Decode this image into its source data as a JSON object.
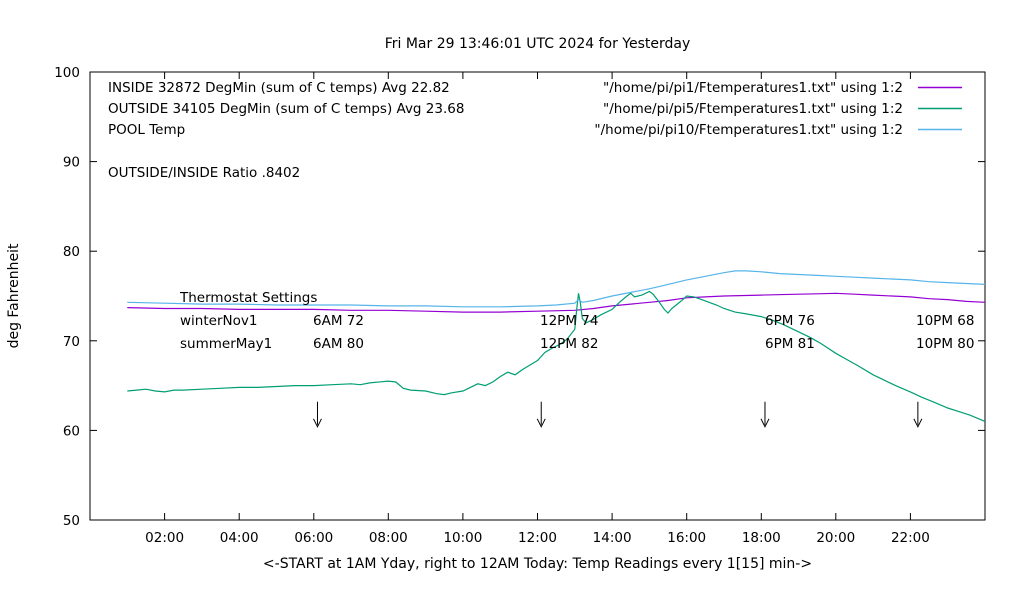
{
  "window": {
    "title": "Fri Mar 29 13:46:01 UTC 2024 for Yesterday"
  },
  "chart_data": {
    "type": "line",
    "title": "Fri Mar 29 13:46:01 UTC 2024 for Yesterday",
    "xlabel": "<-START at 1AM Yday, right to 12AM Today:  Temp Readings every 1[15] min->",
    "ylabel": "deg Fahrenheit",
    "xlim": [
      0,
      24
    ],
    "ylim": [
      50,
      100
    ],
    "grid": false,
    "legend_position": "top-inside",
    "xticks": [
      {
        "t": 2,
        "label": "02:00"
      },
      {
        "t": 4,
        "label": "04:00"
      },
      {
        "t": 6,
        "label": "06:00"
      },
      {
        "t": 8,
        "label": "08:00"
      },
      {
        "t": 10,
        "label": "10:00"
      },
      {
        "t": 12,
        "label": "12:00"
      },
      {
        "t": 14,
        "label": "14:00"
      },
      {
        "t": 16,
        "label": "16:00"
      },
      {
        "t": 18,
        "label": "18:00"
      },
      {
        "t": 20,
        "label": "20:00"
      },
      {
        "t": 22,
        "label": "22:00"
      }
    ],
    "yticks": [
      50,
      60,
      70,
      80,
      90,
      100
    ],
    "legend": [
      {
        "label": "INSIDE 32872 DegMin (sum of C temps) Avg 22.82",
        "file": "\"/home/pi/pi1/Ftemperatures1.txt\" using 1:2",
        "color": "#9400D3"
      },
      {
        "label": "OUTSIDE 34105 DegMin (sum of C temps) Avg 23.68",
        "file": "\"/home/pi/pi5/Ftemperatures1.txt\" using 1:2",
        "color": "#009E73"
      },
      {
        "label": "POOL Temp",
        "file": "\"/home/pi/pi10/Ftemperatures1.txt\" using 1:2",
        "color": "#56B4E9"
      }
    ],
    "annotations": {
      "ratio": "OUTSIDE/INSIDE Ratio .8402",
      "thermostat_title": "Thermostat Settings",
      "thermostat_rows": [
        {
          "name": "winterNov1",
          "cells": [
            "6AM 72",
            "12PM 74",
            "6PM 76",
            "10PM 68"
          ]
        },
        {
          "name": "summerMay1",
          "cells": [
            "6AM 80",
            "12PM 82",
            "6PM 81",
            "10PM 80"
          ]
        }
      ]
    },
    "arrows": [
      {
        "x": 6.1
      },
      {
        "x": 12.1
      },
      {
        "x": 18.1
      },
      {
        "x": 22.2
      }
    ],
    "arrow_y": [
      63.2,
      60.4
    ],
    "series": [
      {
        "name": "INSIDE",
        "color": "#9400D3",
        "points": [
          [
            1,
            73.7
          ],
          [
            2,
            73.6
          ],
          [
            3,
            73.6
          ],
          [
            4,
            73.5
          ],
          [
            5,
            73.5
          ],
          [
            6,
            73.5
          ],
          [
            7,
            73.4
          ],
          [
            8,
            73.4
          ],
          [
            9,
            73.3
          ],
          [
            10,
            73.2
          ],
          [
            11,
            73.2
          ],
          [
            12,
            73.3
          ],
          [
            13,
            73.4
          ],
          [
            13.5,
            73.6
          ],
          [
            14,
            73.9
          ],
          [
            14.5,
            74.1
          ],
          [
            15,
            74.3
          ],
          [
            15.5,
            74.5
          ],
          [
            16,
            74.8
          ],
          [
            16.5,
            74.9
          ],
          [
            17,
            75.0
          ],
          [
            18,
            75.1
          ],
          [
            19,
            75.2
          ],
          [
            19.5,
            75.25
          ],
          [
            20,
            75.3
          ],
          [
            20.5,
            75.2
          ],
          [
            21,
            75.1
          ],
          [
            21.5,
            75.0
          ],
          [
            22,
            74.9
          ],
          [
            22.5,
            74.7
          ],
          [
            23,
            74.6
          ],
          [
            23.5,
            74.4
          ],
          [
            24,
            74.3
          ]
        ]
      },
      {
        "name": "OUTSIDE",
        "color": "#009E73",
        "points": [
          [
            1,
            64.4
          ],
          [
            1.25,
            64.5
          ],
          [
            1.5,
            64.6
          ],
          [
            1.75,
            64.4
          ],
          [
            2,
            64.3
          ],
          [
            2.25,
            64.5
          ],
          [
            2.5,
            64.5
          ],
          [
            3,
            64.6
          ],
          [
            3.5,
            64.7
          ],
          [
            4,
            64.8
          ],
          [
            4.5,
            64.8
          ],
          [
            5,
            64.9
          ],
          [
            5.5,
            65.0
          ],
          [
            6,
            65.0
          ],
          [
            6.5,
            65.1
          ],
          [
            7,
            65.2
          ],
          [
            7.25,
            65.1
          ],
          [
            7.5,
            65.3
          ],
          [
            8,
            65.5
          ],
          [
            8.2,
            65.4
          ],
          [
            8.4,
            64.7
          ],
          [
            8.6,
            64.5
          ],
          [
            9,
            64.4
          ],
          [
            9.3,
            64.1
          ],
          [
            9.5,
            64.0
          ],
          [
            9.7,
            64.2
          ],
          [
            10,
            64.4
          ],
          [
            10.2,
            64.8
          ],
          [
            10.4,
            65.2
          ],
          [
            10.6,
            65.0
          ],
          [
            10.8,
            65.4
          ],
          [
            11,
            66.0
          ],
          [
            11.2,
            66.5
          ],
          [
            11.4,
            66.2
          ],
          [
            11.6,
            66.8
          ],
          [
            11.8,
            67.3
          ],
          [
            12,
            67.8
          ],
          [
            12.2,
            68.7
          ],
          [
            12.4,
            69.2
          ],
          [
            12.6,
            69.6
          ],
          [
            12.8,
            70.2
          ],
          [
            13,
            71.3
          ],
          [
            13.05,
            73.5
          ],
          [
            13.1,
            75.3
          ],
          [
            13.15,
            74.2
          ],
          [
            13.2,
            72.5
          ],
          [
            13.3,
            72.0
          ],
          [
            13.5,
            72.4
          ],
          [
            13.7,
            72.9
          ],
          [
            14,
            73.5
          ],
          [
            14.2,
            74.3
          ],
          [
            14.4,
            75.0
          ],
          [
            14.5,
            75.3
          ],
          [
            14.6,
            74.9
          ],
          [
            14.8,
            75.1
          ],
          [
            15,
            75.5
          ],
          [
            15.1,
            75.2
          ],
          [
            15.25,
            74.4
          ],
          [
            15.4,
            73.5
          ],
          [
            15.5,
            73.1
          ],
          [
            15.6,
            73.6
          ],
          [
            15.75,
            74.1
          ],
          [
            15.9,
            74.6
          ],
          [
            16,
            75.0
          ],
          [
            16.2,
            74.9
          ],
          [
            16.4,
            74.6
          ],
          [
            16.6,
            74.3
          ],
          [
            16.8,
            74.0
          ],
          [
            17,
            73.6
          ],
          [
            17.3,
            73.2
          ],
          [
            17.6,
            73.0
          ],
          [
            18,
            72.7
          ],
          [
            18.3,
            72.3
          ],
          [
            18.6,
            71.8
          ],
          [
            19,
            71.0
          ],
          [
            19.3,
            70.4
          ],
          [
            19.6,
            69.7
          ],
          [
            20,
            68.6
          ],
          [
            20.3,
            67.9
          ],
          [
            20.6,
            67.2
          ],
          [
            21,
            66.2
          ],
          [
            21.3,
            65.6
          ],
          [
            21.6,
            65.0
          ],
          [
            22,
            64.3
          ],
          [
            22.3,
            63.7
          ],
          [
            22.6,
            63.2
          ],
          [
            23,
            62.5
          ],
          [
            23.3,
            62.1
          ],
          [
            23.6,
            61.7
          ],
          [
            24,
            61.0
          ]
        ]
      },
      {
        "name": "POOL",
        "color": "#56B4E9",
        "points": [
          [
            1,
            74.3
          ],
          [
            2,
            74.2
          ],
          [
            3,
            74.1
          ],
          [
            4,
            74.1
          ],
          [
            5,
            74.0
          ],
          [
            6,
            74.0
          ],
          [
            7,
            74.0
          ],
          [
            8,
            73.9
          ],
          [
            9,
            73.9
          ],
          [
            10,
            73.8
          ],
          [
            11,
            73.8
          ],
          [
            12,
            73.9
          ],
          [
            12.5,
            74.0
          ],
          [
            13,
            74.2
          ],
          [
            13.1,
            74.6
          ],
          [
            13.2,
            74.3
          ],
          [
            13.5,
            74.5
          ],
          [
            14,
            75.0
          ],
          [
            14.5,
            75.4
          ],
          [
            15,
            75.8
          ],
          [
            15.5,
            76.3
          ],
          [
            16,
            76.8
          ],
          [
            16.5,
            77.2
          ],
          [
            17,
            77.6
          ],
          [
            17.3,
            77.8
          ],
          [
            17.6,
            77.8
          ],
          [
            18,
            77.7
          ],
          [
            18.5,
            77.5
          ],
          [
            19,
            77.4
          ],
          [
            19.5,
            77.3
          ],
          [
            20,
            77.2
          ],
          [
            20.5,
            77.1
          ],
          [
            21,
            77.0
          ],
          [
            21.5,
            76.9
          ],
          [
            22,
            76.8
          ],
          [
            22.5,
            76.6
          ],
          [
            23,
            76.5
          ],
          [
            23.5,
            76.4
          ],
          [
            24,
            76.3
          ]
        ]
      }
    ]
  }
}
